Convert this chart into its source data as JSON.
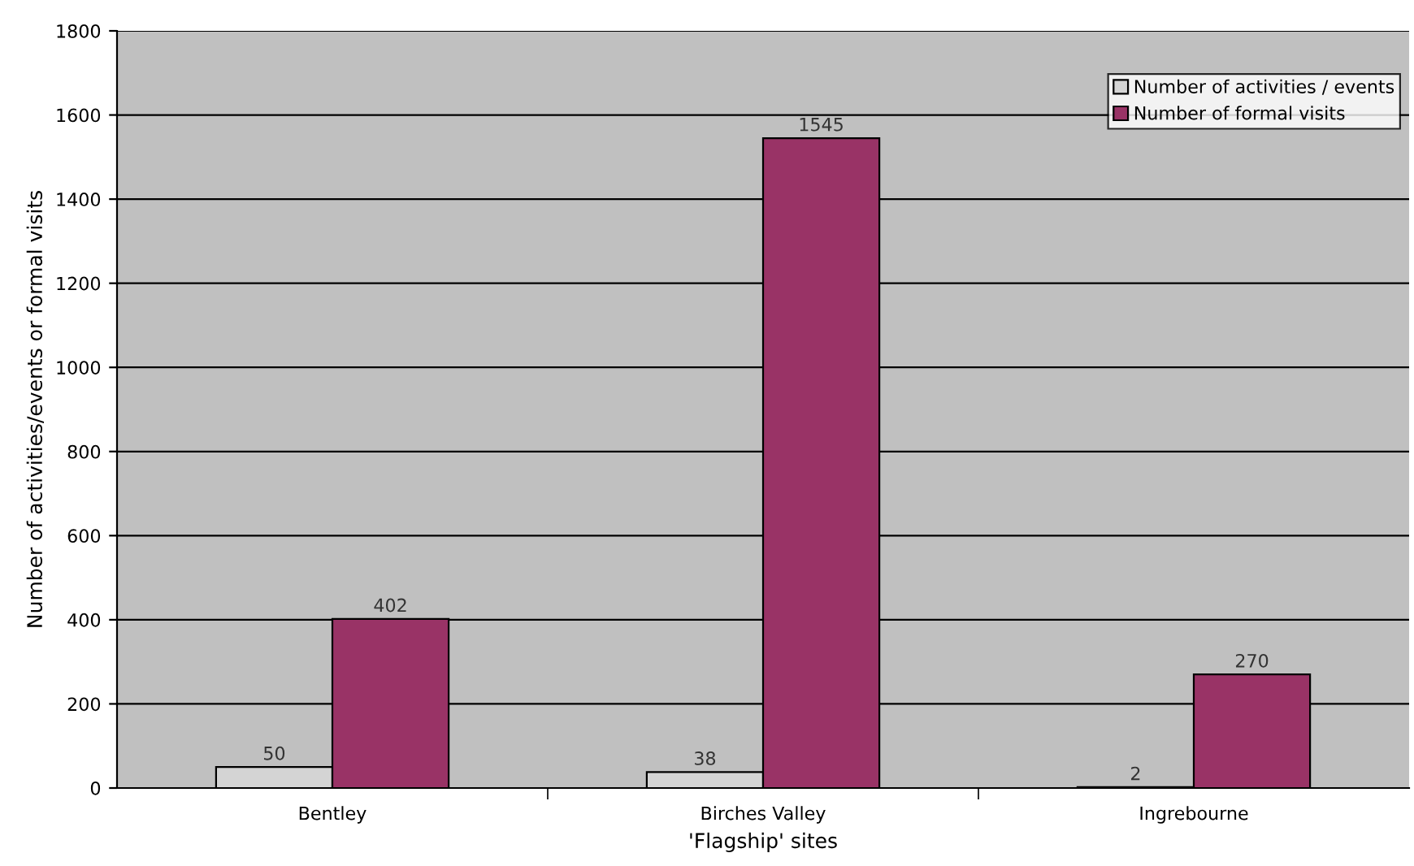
{
  "chart_data": {
    "type": "bar",
    "xlabel": "'Flagship' sites",
    "ylabel": "Number of activities/events or formal visits",
    "categories": [
      "Bentley",
      "Birches Valley",
      "Ingrebourne"
    ],
    "series": [
      {
        "name": "Number of activities / events",
        "color": "#d4d4d4",
        "values": [
          50,
          38,
          2
        ]
      },
      {
        "name": "Number of formal visits",
        "color": "#993366",
        "values": [
          402,
          1545,
          270
        ]
      }
    ],
    "ylim": [
      0,
      1800
    ],
    "yticks": [
      0,
      200,
      400,
      600,
      800,
      1000,
      1200,
      1400,
      1600,
      1800
    ],
    "grid": "y",
    "legend": "top right",
    "data_labels": true
  }
}
